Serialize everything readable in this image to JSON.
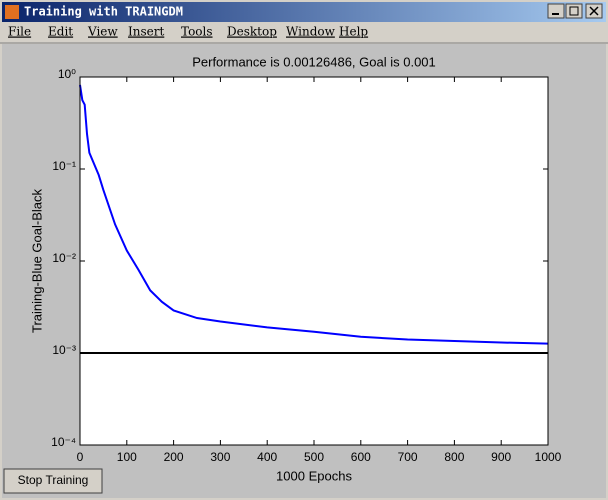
{
  "window": {
    "title": "Training with TRAINGDM",
    "menu": [
      "File",
      "Edit",
      "View",
      "Insert",
      "Tools",
      "Desktop",
      "Window",
      "Help"
    ],
    "button": "Stop Training"
  },
  "chart_data": {
    "type": "line",
    "title": "Performance is 0.00126486, Goal is 0.001",
    "xlabel": "1000 Epochs",
    "ylabel": "Training-Blue  Goal-Black",
    "log_y": true,
    "grid": false,
    "xlim": [
      0,
      1000
    ],
    "ylim": [
      0.0001,
      1
    ],
    "xticks": [
      0,
      100,
      200,
      300,
      400,
      500,
      600,
      700,
      800,
      900,
      1000
    ],
    "yticks": [
      {
        "value": 0.0001,
        "label": "10⁻⁴"
      },
      {
        "value": 0.001,
        "label": "10⁻³"
      },
      {
        "value": 0.01,
        "label": "10⁻²"
      },
      {
        "value": 0.1,
        "label": "10⁻¹"
      },
      {
        "value": 1,
        "label": "10⁰"
      }
    ],
    "series": [
      {
        "name": "Training",
        "color": "#0000ff",
        "x": [
          0,
          5,
          10,
          15,
          20,
          40,
          50,
          75,
          100,
          125,
          150,
          175,
          200,
          250,
          300,
          400,
          500,
          600,
          700,
          800,
          900,
          1000
        ],
        "values": [
          0.82,
          0.56,
          0.5,
          0.24,
          0.15,
          0.086,
          0.059,
          0.025,
          0.013,
          0.008,
          0.0048,
          0.0036,
          0.0029,
          0.0024,
          0.0022,
          0.0019,
          0.0017,
          0.0015,
          0.0014,
          0.00135,
          0.0013,
          0.00126486
        ]
      },
      {
        "name": "Goal",
        "color": "#000000",
        "x": [
          0,
          1000
        ],
        "values": [
          0.001,
          0.001
        ]
      }
    ]
  }
}
